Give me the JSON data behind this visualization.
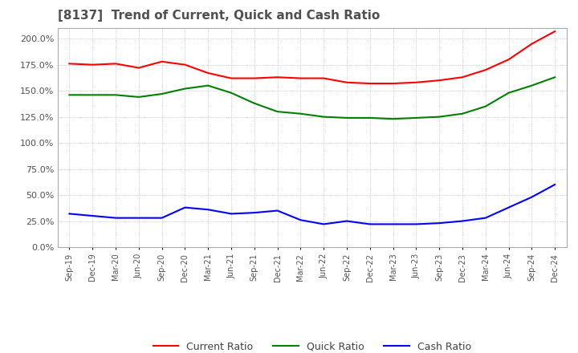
{
  "title": "[8137]  Trend of Current, Quick and Cash Ratio",
  "x_labels": [
    "Sep-19",
    "Dec-19",
    "Mar-20",
    "Jun-20",
    "Sep-20",
    "Dec-20",
    "Mar-21",
    "Jun-21",
    "Sep-21",
    "Dec-21",
    "Mar-22",
    "Jun-22",
    "Sep-22",
    "Dec-22",
    "Mar-23",
    "Jun-23",
    "Sep-23",
    "Dec-23",
    "Mar-24",
    "Jun-24",
    "Sep-24",
    "Dec-24"
  ],
  "current_ratio": [
    176,
    175,
    176,
    172,
    178,
    175,
    167,
    162,
    162,
    163,
    162,
    162,
    158,
    157,
    157,
    158,
    160,
    163,
    170,
    180,
    195,
    207
  ],
  "quick_ratio": [
    146,
    146,
    146,
    144,
    147,
    152,
    155,
    148,
    138,
    130,
    128,
    125,
    124,
    124,
    123,
    124,
    125,
    128,
    135,
    148,
    155,
    163
  ],
  "cash_ratio": [
    32,
    30,
    28,
    28,
    28,
    38,
    36,
    32,
    33,
    35,
    26,
    22,
    25,
    22,
    22,
    22,
    23,
    25,
    28,
    38,
    48,
    60
  ],
  "ylim": [
    0,
    210
  ],
  "yticks": [
    0,
    25,
    50,
    75,
    100,
    125,
    150,
    175,
    200
  ],
  "current_color": "#ff0000",
  "quick_color": "#008000",
  "cash_color": "#0000ff",
  "bg_color": "#ffffff",
  "grid_color": "#aaaaaa",
  "title_color": "#505050",
  "legend_labels": [
    "Current Ratio",
    "Quick Ratio",
    "Cash Ratio"
  ]
}
